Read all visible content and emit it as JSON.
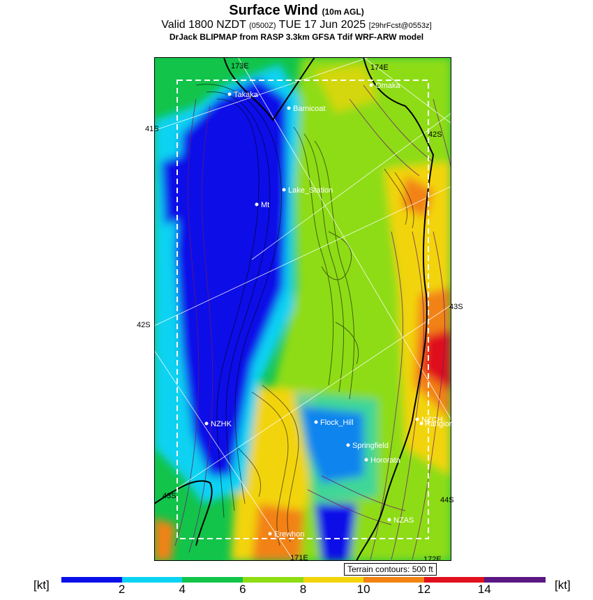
{
  "header": {
    "title": "Surface Wind",
    "title_suffix": "(10m AGL)",
    "valid_prefix": "Valid 1800 NZDT",
    "valid_utc": "(0500Z)",
    "valid_date": "TUE 17 Jun 2025",
    "forecast": "[29hrFcst@0553z]",
    "model_line": "DrJack BLIPMAP from RASP 3.3km GFSA Tdif WRF-ARW model"
  },
  "map": {
    "places": [
      {
        "name": "Takaka"
      },
      {
        "name": "Barnicoat"
      },
      {
        "name": "Omaka"
      },
      {
        "name": "Lake_Station"
      },
      {
        "name": "Mt"
      },
      {
        "name": "NZHK"
      },
      {
        "name": "Flock_Hill"
      },
      {
        "name": "NZCH"
      },
      {
        "name": "Rangiora"
      },
      {
        "name": "Springfield"
      },
      {
        "name": "Hororata"
      },
      {
        "name": "NZAS"
      },
      {
        "name": "Erewhon"
      }
    ],
    "grid_labels": {
      "lon_top_left": "173E",
      "lon_top_right": "174E",
      "lon_bottom_mid": "171E",
      "lon_bottom_right": "172E",
      "lat_41_left": "41S",
      "lat_42_right": "42S",
      "lat_42_left": "42S",
      "lat_43_right": "43S",
      "lat_43_left": "43S",
      "lat_44_right": "44S"
    },
    "terrain_note": "Terrain contours: 500 ft"
  },
  "colorbar": {
    "unit": "[kt]",
    "ticks": [
      "2",
      "4",
      "6",
      "8",
      "10",
      "12",
      "14"
    ],
    "colors": [
      "#0a10e8",
      "#0ad2f2",
      "#12c44a",
      "#8edc12",
      "#f2d40a",
      "#f28212",
      "#e0101c",
      "#5a1882"
    ]
  }
}
